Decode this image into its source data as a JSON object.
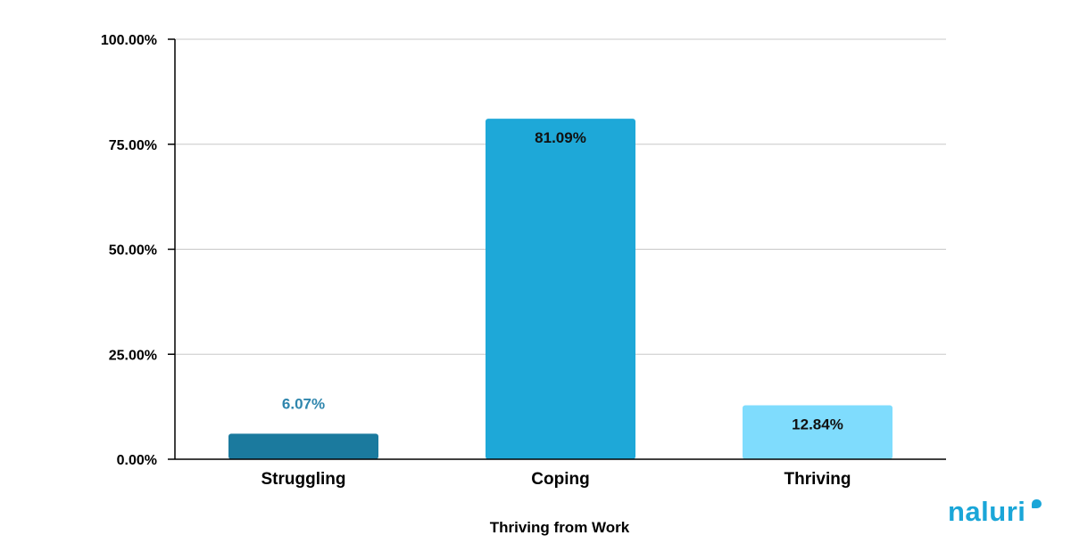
{
  "brand": {
    "name": "naluri",
    "color": "#1aa6d8"
  },
  "chart_data": {
    "type": "bar",
    "title": "",
    "xlabel": "Thriving from Work",
    "ylabel": "",
    "categories": [
      "Struggling",
      "Coping",
      "Thriving"
    ],
    "values": [
      6.07,
      81.09,
      12.84
    ],
    "value_labels": [
      "6.07%",
      "81.09%",
      "12.84%"
    ],
    "bar_colors": [
      "#1b7a9e",
      "#1ea8d8",
      "#7fdcfd"
    ],
    "value_label_colors": [
      "#2f86ad",
      "#111111",
      "#111111"
    ],
    "value_label_positions": [
      "above",
      "inside",
      "inside"
    ],
    "ylim": [
      0,
      100
    ],
    "y_ticks": [
      0,
      25,
      50,
      75,
      100
    ],
    "y_tick_labels": [
      "0.00%",
      "25.00%",
      "50.00%",
      "75.00%",
      "100.00%"
    ],
    "grid": true,
    "legend": "none"
  }
}
